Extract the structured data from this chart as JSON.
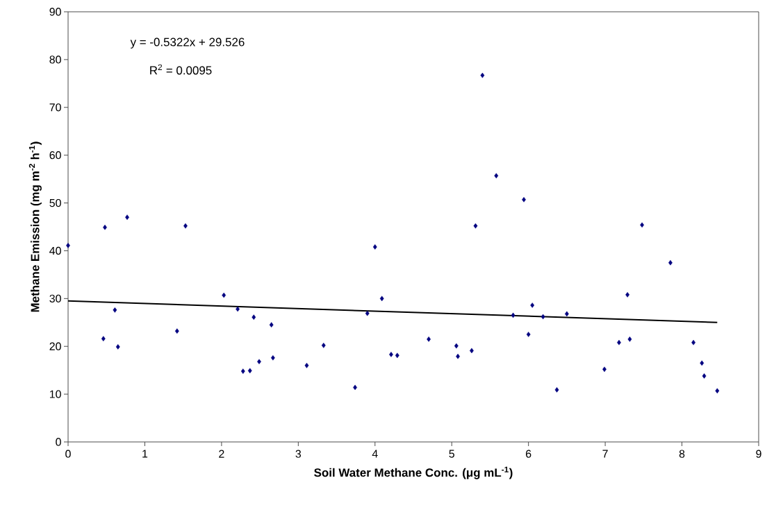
{
  "chart_data": {
    "type": "scatter",
    "xlabel": "Soil Water Methane Conc. (μg mL$^{-1}$)",
    "ylabel": "Methane Emission (mg m$^{-2}$ h$^{-1}$)",
    "annotations": [
      "y = -0.5322x + 29.526",
      "R$^{2}$ = 0.0095"
    ],
    "xlim": [
      0,
      9
    ],
    "xticks": [
      0,
      1,
      2,
      3,
      4,
      5,
      6,
      7,
      8,
      9
    ],
    "ylim": [
      0,
      90
    ],
    "yticks": [
      0,
      10,
      20,
      30,
      40,
      50,
      60,
      70,
      80,
      90
    ],
    "grid": false,
    "series": [
      {
        "color": "#000080",
        "marker": "diamond",
        "x": [
          0,
          0.46,
          0.61,
          0.65,
          1.42,
          2.03,
          2.21,
          2.42,
          2.65,
          2.28,
          2.37,
          2.49,
          2.67,
          0.48,
          0.77,
          1.53,
          5.4,
          5.58,
          5.94,
          5.31,
          7.48,
          3.11,
          3.33,
          3.74,
          3.9,
          4.0,
          4.09,
          4.21,
          4.29,
          4.7,
          5.06,
          5.08,
          5.26,
          5.8,
          6.0,
          6.05,
          6.19,
          6.37,
          6.5,
          6.99,
          7.18,
          7.29,
          7.32,
          7.85,
          8.15,
          8.26,
          8.29,
          8.46
        ],
        "values": [
          41.1,
          21.6,
          27.6,
          19.9,
          23.2,
          30.7,
          27.8,
          26.1,
          24.5,
          14.8,
          14.9,
          16.8,
          17.6,
          44.9,
          47.0,
          45.2,
          76.7,
          55.7,
          50.7,
          45.2,
          45.4,
          16.0,
          20.2,
          11.4,
          26.9,
          40.8,
          30.0,
          18.3,
          18.1,
          21.5,
          20.1,
          17.9,
          19.1,
          26.5,
          22.5,
          28.6,
          26.2,
          10.9,
          26.8,
          15.2,
          20.8,
          30.8,
          21.5,
          37.5,
          20.8,
          16.5,
          13.8,
          10.7
        ]
      },
      {
        "type": "line",
        "color": "#000000",
        "x": [
          0,
          8.46
        ],
        "values": [
          29.5,
          25.0
        ]
      }
    ]
  }
}
